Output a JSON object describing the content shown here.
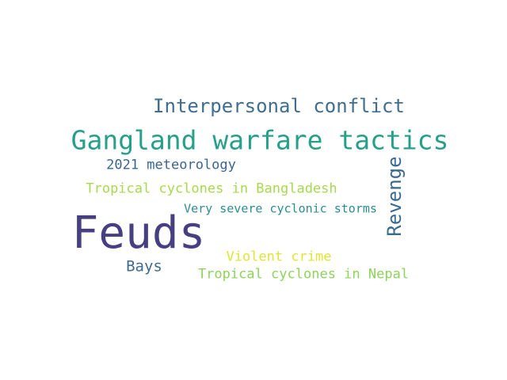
{
  "words": [
    {
      "text": "Interpersonal conflict",
      "color": "#3f6e8f"
    },
    {
      "text": "Gangland warfare tactics",
      "color": "#26a08a"
    },
    {
      "text": "2021 meteorology",
      "color": "#3b6591"
    },
    {
      "text": "Revenge",
      "color": "#3a6a8e"
    },
    {
      "text": "Tropical cyclones in Bangladesh",
      "color": "#a6d94e"
    },
    {
      "text": "Very severe cyclonic storms",
      "color": "#2a8f8c"
    },
    {
      "text": "Feuds",
      "color": "#463f82"
    },
    {
      "text": "Violent crime",
      "color": "#e1e437"
    },
    {
      "text": "Bays",
      "color": "#3e6b8e"
    },
    {
      "text": "Tropical cyclones in Nepal",
      "color": "#8ed35b"
    }
  ]
}
